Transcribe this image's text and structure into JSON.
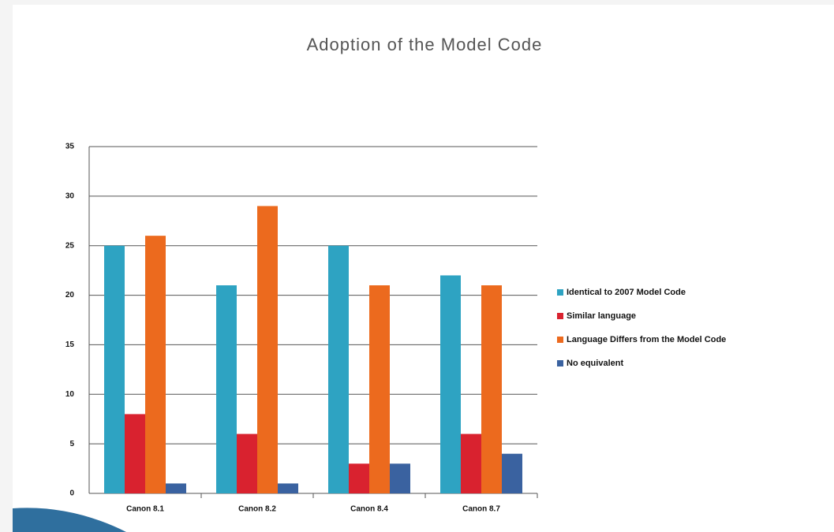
{
  "chart_data": {
    "type": "bar",
    "title": "Adoption of the Model Code",
    "categories": [
      "Canon 8.1",
      "Canon 8.2",
      "Canon 8.4",
      "Canon 8.7"
    ],
    "series": [
      {
        "name": "Identical to 2007 Model Code",
        "color": "#2ea3c2",
        "values": [
          25,
          21,
          25,
          22
        ]
      },
      {
        "name": "Similar language",
        "color": "#d9222f",
        "values": [
          8,
          6,
          3,
          6
        ]
      },
      {
        "name": "Language Differs from the Model Code",
        "color": "#ec6a1e",
        "values": [
          26,
          29,
          21,
          21
        ]
      },
      {
        "name": "No equivalent",
        "color": "#3a62a0",
        "values": [
          1,
          1,
          3,
          4
        ]
      }
    ],
    "ylim": [
      0,
      35
    ],
    "yticks": [
      0,
      5,
      10,
      15,
      20,
      25,
      30,
      35
    ],
    "grid": true,
    "legend": "right"
  }
}
